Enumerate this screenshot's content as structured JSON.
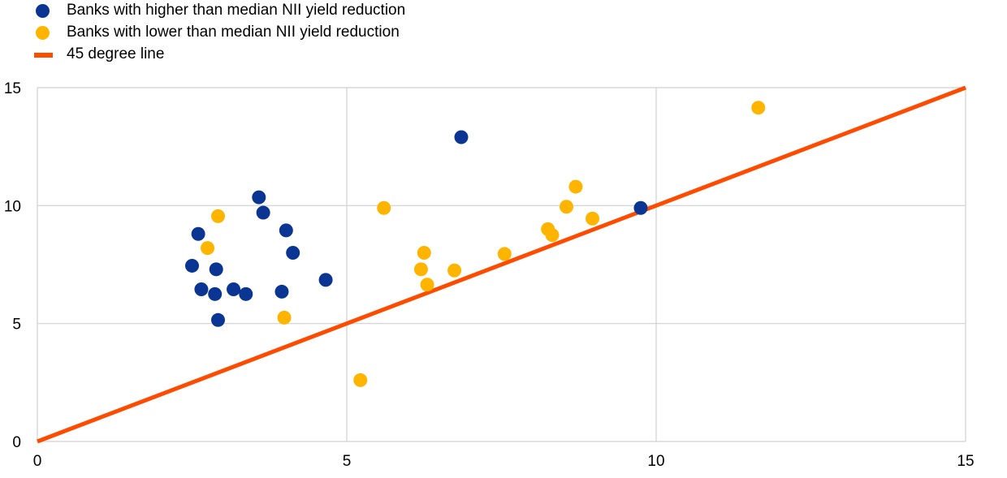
{
  "chart_data": {
    "type": "scatter",
    "title": "",
    "xlabel": "",
    "ylabel": "",
    "xlim": [
      0,
      15
    ],
    "ylim": [
      0,
      15
    ],
    "xticks": [
      "0",
      "5",
      "10",
      "15"
    ],
    "yticks": [
      "0",
      "5",
      "10",
      "15"
    ],
    "grid": true,
    "legend_position": "top-left",
    "series": [
      {
        "name": "Banks with higher  than median NII yield reduction",
        "color": "#0a3593",
        "points": [
          [
            6.85,
            12.9
          ],
          [
            3.58,
            10.35
          ],
          [
            3.65,
            9.7
          ],
          [
            4.02,
            8.95
          ],
          [
            2.6,
            8.8
          ],
          [
            4.13,
            8.0
          ],
          [
            2.5,
            7.45
          ],
          [
            2.89,
            7.3
          ],
          [
            4.66,
            6.85
          ],
          [
            2.65,
            6.45
          ],
          [
            3.17,
            6.45
          ],
          [
            2.87,
            6.25
          ],
          [
            3.37,
            6.25
          ],
          [
            3.95,
            6.35
          ],
          [
            2.92,
            5.15
          ],
          [
            9.75,
            9.9
          ]
        ]
      },
      {
        "name": "Banks with lower than median NII yield reduction",
        "color": "#ffb400",
        "points": [
          [
            11.65,
            14.15
          ],
          [
            2.92,
            9.55
          ],
          [
            5.6,
            9.9
          ],
          [
            2.75,
            8.2
          ],
          [
            3.99,
            5.25
          ],
          [
            5.22,
            2.6
          ],
          [
            6.25,
            8.0
          ],
          [
            6.2,
            7.3
          ],
          [
            6.3,
            6.65
          ],
          [
            6.74,
            7.25
          ],
          [
            7.55,
            7.95
          ],
          [
            8.25,
            9.0
          ],
          [
            8.32,
            8.75
          ],
          [
            8.55,
            9.95
          ],
          [
            8.7,
            10.8
          ],
          [
            8.97,
            9.45
          ]
        ]
      }
    ],
    "reference_line": {
      "name": "45 degree line",
      "color": "#ff4b00",
      "from": [
        0,
        0
      ],
      "to": [
        15,
        15
      ]
    }
  }
}
